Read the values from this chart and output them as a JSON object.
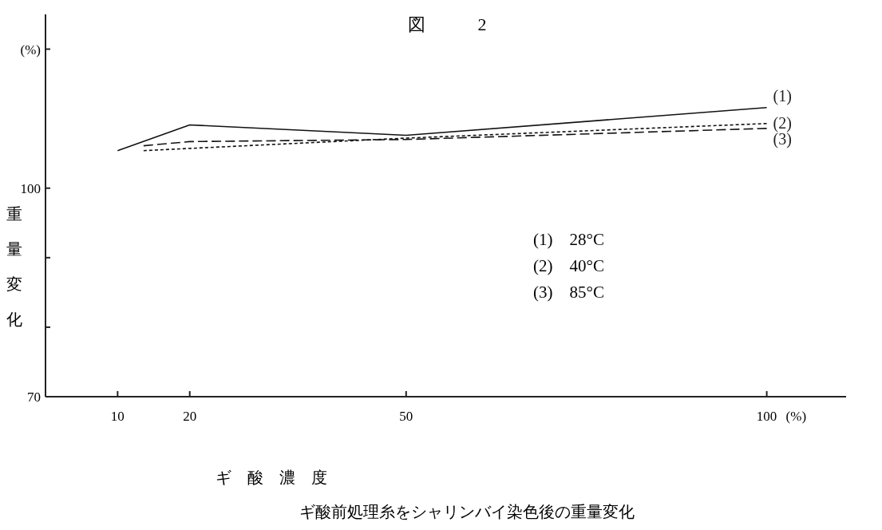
{
  "chart_data": {
    "type": "line",
    "title": "図　　　2",
    "xlabel": "ギ　酸　濃　度",
    "ylabel": "重量変化",
    "xlim": [
      0,
      111
    ],
    "xticks": [
      10,
      20,
      50,
      100
    ],
    "ylim": [
      70,
      125
    ],
    "yticks": [
      70,
      {
        "value": 80,
        "label": null
      },
      {
        "value": 90,
        "label": null
      },
      100,
      {
        "value": 120,
        "label": "(%)"
      }
    ],
    "series": [
      {
        "name": "(1)",
        "color": "#111111",
        "line_style": "solid",
        "x": [
          10,
          20,
          50,
          100
        ],
        "values": [
          105.4,
          109.1,
          107.6,
          111.6
        ]
      },
      {
        "name": "(2)",
        "color": "#111111",
        "line_style": "dotted",
        "x": [
          13.6,
          50,
          100
        ],
        "values": [
          105.4,
          107.2,
          109.3
        ]
      },
      {
        "name": "(3)",
        "color": "#111111",
        "line_style": "dashed",
        "x": [
          13.6,
          20,
          50,
          100
        ],
        "values": [
          106.1,
          106.7,
          107.0,
          108.6
        ]
      }
    ],
    "grid": false,
    "marker": "none",
    "annotations": [
      "(%)",
      "(1)　28°C",
      "(2)　40°C",
      "(3)　85°C",
      "ギ酸前処理糸をシャリンバイ染色後の重量変化"
    ]
  }
}
